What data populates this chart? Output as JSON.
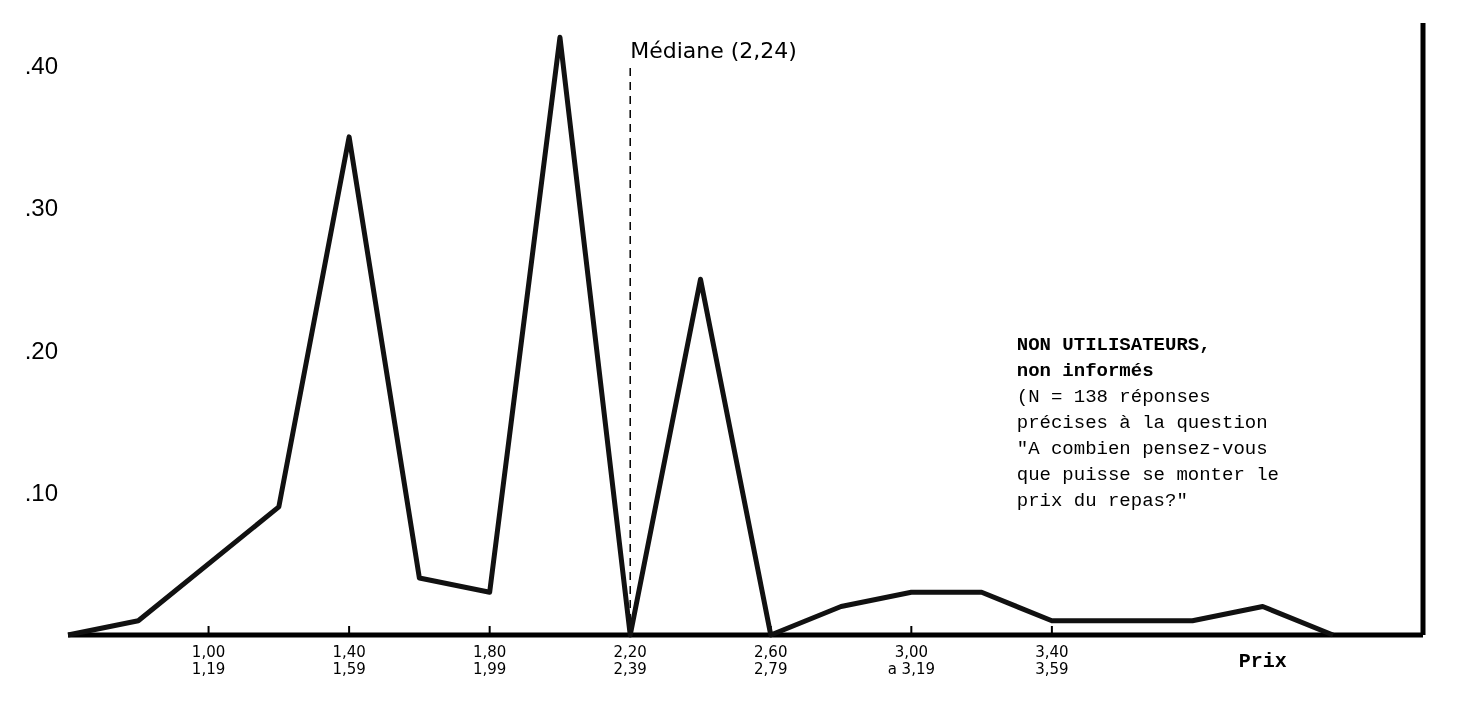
{
  "chart_data": {
    "type": "line",
    "xlabel": "Prix",
    "categories": [
      null,
      null,
      "1,00\n1,19",
      null,
      "1,40\n1,59",
      null,
      "1,80\n1,99",
      null,
      "2,20\n2,39",
      null,
      "2,60\n2,79",
      null,
      "3,00\na 3,19",
      null,
      "3,40\n3,59",
      null,
      null,
      null,
      null
    ],
    "series": [
      {
        "color": "#111111",
        "values": [
          0,
          0.01,
          null,
          0.09,
          0.35,
          0.04,
          0.03,
          0.42,
          0,
          0.25,
          0,
          0.02,
          0.03,
          0.03,
          0.01,
          null,
          0.01,
          0.02,
          0
        ]
      }
    ],
    "ylim": [
      0,
      0.43
    ],
    "yticks": [
      {
        "value": 0.1,
        "label": ".10"
      },
      {
        "value": 0.2,
        "label": ".20"
      },
      {
        "value": 0.3,
        "label": ".30"
      },
      {
        "value": 0.4,
        "label": ".40"
      }
    ],
    "ref_lines": [
      {
        "axis": "x",
        "value": "2,20\n2,39",
        "label": "Médiane (2,24)",
        "line_style": "dashed"
      }
    ],
    "annotations": [
      "NON UTILISATEURS,",
      "non informés",
      "(N = 138 réponses précises à la question \"A combien pensez-vous que puisse se monter le prix du repas?\""
    ],
    "grid": false,
    "marker": "none",
    "line_style": "solid"
  }
}
